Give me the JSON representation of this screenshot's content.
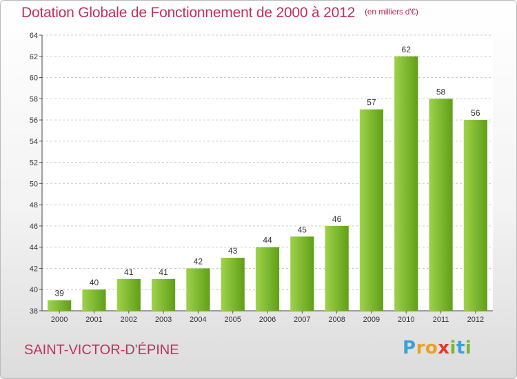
{
  "title": "Dotation Globale de Fonctionnement de 2000 à 2012",
  "unit": "(en milliers d'€)",
  "commune": "SAINT-VICTOR-D'ÉPINE",
  "logo": {
    "text": "Proxiti",
    "letter_colors": [
      "#3aa0db",
      "#e9a21f",
      "#e9a21f",
      "#e23a2a",
      "#7ab536",
      "#3aa0db",
      "#7ab536"
    ]
  },
  "colors": {
    "title": "#c0305a",
    "bar_light": "#9fd24b",
    "bar_dark": "#5f9f17",
    "grid": "#cccccc"
  },
  "chart_data": {
    "type": "bar",
    "title": "Dotation Globale de Fonctionnement de 2000 à 2012",
    "xlabel": "",
    "ylabel": "",
    "categories": [
      "2000",
      "2001",
      "2002",
      "2003",
      "2004",
      "2005",
      "2006",
      "2007",
      "2008",
      "2009",
      "2010",
      "2011",
      "2012"
    ],
    "values": [
      39,
      40,
      41,
      41,
      42,
      43,
      44,
      45,
      46,
      57,
      62,
      58,
      56
    ],
    "ylim": [
      38,
      64
    ],
    "yticks": [
      38,
      40,
      42,
      44,
      46,
      48,
      50,
      52,
      54,
      56,
      58,
      60,
      62,
      64
    ],
    "grid": true
  }
}
